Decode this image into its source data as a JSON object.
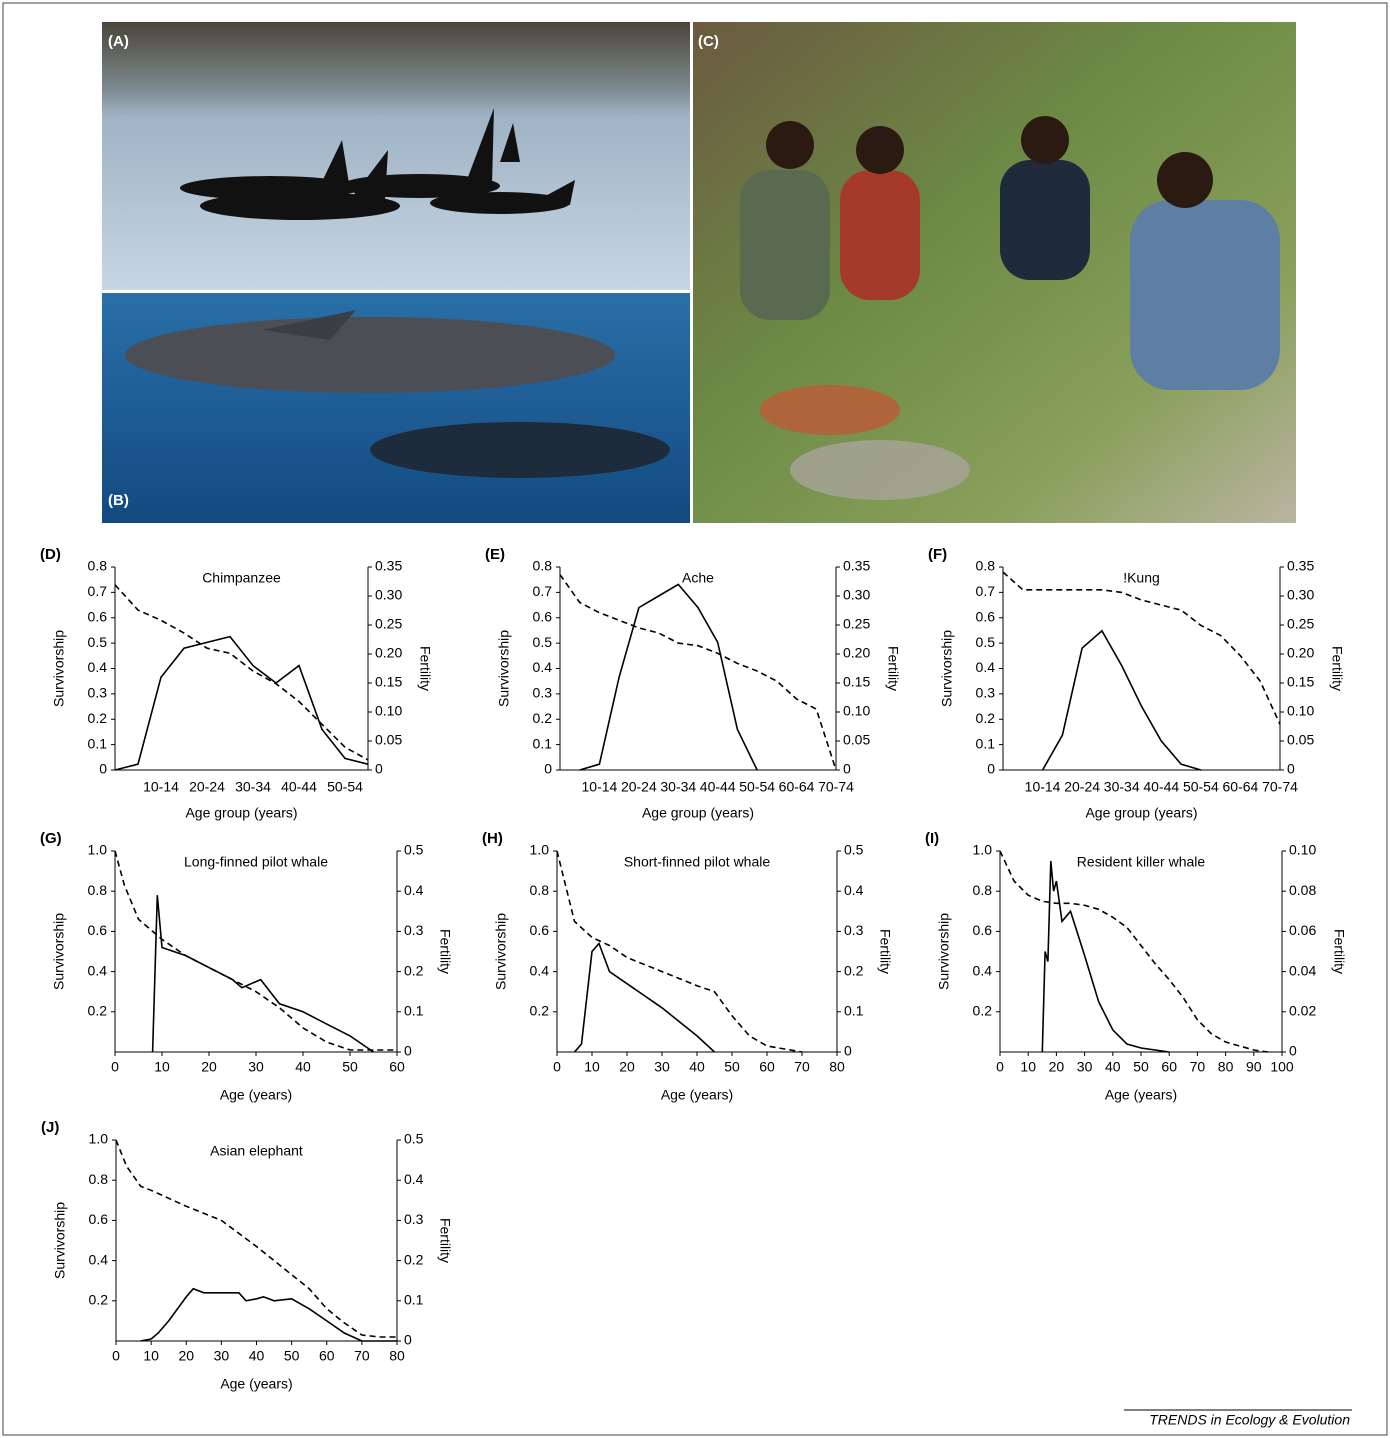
{
  "panels": [
    {
      "label": "(A)"
    },
    {
      "label": "(B)"
    },
    {
      "label": "(C)"
    }
  ],
  "footer": "TRENDS in Ecology & Evolution",
  "chart_data": [
    {
      "type": "line",
      "label": "(D)",
      "title": "Chimpanzee",
      "x_label": "Age group (years)",
      "y_label": "Survivorship",
      "y2_label": "Fertility",
      "categories": [
        null,
        null,
        "10-14",
        null,
        "20-24",
        null,
        "30-34",
        null,
        "40-44",
        null,
        "50-54",
        null
      ],
      "ylim": [
        0,
        0.8
      ],
      "yticks": [
        0,
        0.1,
        0.2,
        0.3,
        0.4,
        0.5,
        0.6,
        0.7,
        0.8
      ],
      "y2lim": [
        0,
        0.35
      ],
      "y2ticks": [
        0,
        0.05,
        {
          "value": 0.1,
          "label": "0.10"
        },
        0.15,
        {
          "value": 0.2,
          "label": "0.20"
        },
        0.25,
        {
          "value": 0.3,
          "label": "0.30"
        },
        0.35
      ],
      "series": [
        {
          "color": "#000000",
          "dashed": true,
          "values": [
            0.73,
            0.63,
            0.59,
            0.54,
            0.48,
            0.46,
            0.39,
            0.34,
            0.27,
            0.18,
            0.09,
            0.04
          ]
        },
        {
          "color": "#000000",
          "dashed": false,
          "axis": "y2",
          "values": [
            0,
            0.01,
            0.16,
            0.21,
            0.22,
            0.23,
            0.18,
            0.15,
            0.18,
            0.07,
            0.02,
            0.01
          ]
        }
      ]
    },
    {
      "type": "line",
      "label": "(E)",
      "title": "Ache",
      "x_label": "Age group (years)",
      "y_label": "Survivorship",
      "y2_label": "Fertility",
      "categories": [
        null,
        null,
        "10-14",
        null,
        "20-24",
        null,
        "30-34",
        null,
        "40-44",
        null,
        "50-54",
        null,
        "60-64",
        null,
        "70-74"
      ],
      "ylim": [
        0,
        0.8
      ],
      "yticks": [
        0,
        0.1,
        0.2,
        0.3,
        0.4,
        0.5,
        0.6,
        0.7,
        0.8
      ],
      "y2lim": [
        0,
        0.35
      ],
      "y2ticks": [
        0,
        0.05,
        {
          "value": 0.1,
          "label": "0.10"
        },
        0.15,
        {
          "value": 0.2,
          "label": "0.20"
        },
        0.25,
        {
          "value": 0.3,
          "label": "0.30"
        },
        0.35
      ],
      "series": [
        {
          "color": "#000000",
          "dashed": true,
          "values": [
            0.77,
            0.66,
            0.62,
            0.59,
            0.56,
            0.54,
            0.5,
            0.49,
            0.46,
            0.42,
            0.39,
            0.35,
            0.28,
            0.24,
            0
          ]
        },
        {
          "color": "#000000",
          "dashed": false,
          "axis": "y2",
          "values": [
            null,
            0,
            0.01,
            0.16,
            0.28,
            0.3,
            0.32,
            0.28,
            0.22,
            0.07,
            0,
            null,
            null,
            null,
            null
          ]
        }
      ]
    },
    {
      "type": "line",
      "label": "(F)",
      "title": "!Kung",
      "x_label": "Age group (years)",
      "y_label": "Survivorship",
      "y2_label": "Fertility",
      "categories": [
        null,
        null,
        "10-14",
        null,
        "20-24",
        null,
        "30-34",
        null,
        "40-44",
        null,
        "50-54",
        null,
        "60-64",
        null,
        "70-74"
      ],
      "ylim": [
        0,
        0.8
      ],
      "yticks": [
        0,
        0.1,
        0.2,
        0.3,
        0.4,
        0.5,
        0.6,
        0.7,
        0.8
      ],
      "y2lim": [
        0,
        0.35
      ],
      "y2ticks": [
        0,
        0.05,
        {
          "value": 0.1,
          "label": "0.10"
        },
        0.15,
        {
          "value": 0.2,
          "label": "0.20"
        },
        0.25,
        {
          "value": 0.3,
          "label": "0.30"
        },
        0.35
      ],
      "series": [
        {
          "color": "#000000",
          "dashed": true,
          "values": [
            0.78,
            0.71,
            0.71,
            0.71,
            0.71,
            0.71,
            0.7,
            0.67,
            0.65,
            0.63,
            0.57,
            0.53,
            0.45,
            0.35,
            0.18
          ]
        },
        {
          "color": "#000000",
          "dashed": false,
          "axis": "y2",
          "values": [
            null,
            null,
            0,
            0.06,
            0.21,
            0.24,
            0.18,
            0.11,
            0.05,
            0.01,
            0,
            null,
            null,
            null,
            null
          ]
        }
      ]
    },
    {
      "type": "line",
      "label": "(G)",
      "title": "Long-finned pilot whale",
      "x_label": "Age (years)",
      "y_label": "Survivorship",
      "y2_label": "Fertility",
      "xlim": [
        0,
        60
      ],
      "xticks": [
        0,
        10,
        20,
        30,
        40,
        50,
        60
      ],
      "ylim": [
        0,
        1
      ],
      "yticks": [
        0.2,
        0.4,
        0.6,
        0.8,
        {
          "value": 1,
          "label": "1.0"
        }
      ],
      "y2lim": [
        0,
        0.5
      ],
      "y2ticks": [
        0,
        0.1,
        0.2,
        0.3,
        0.4,
        0.5
      ],
      "series": [
        {
          "color": "#000000",
          "dashed": true,
          "x": [
            0,
            2,
            5,
            10,
            15,
            20,
            25,
            30,
            35,
            40,
            45,
            50,
            55,
            60
          ],
          "values": [
            1,
            0.83,
            0.66,
            0.56,
            0.48,
            0.42,
            0.36,
            0.3,
            0.22,
            0.12,
            0.05,
            0.01,
            0.01,
            0.01
          ]
        },
        {
          "color": "#000000",
          "dashed": false,
          "axis": "y2",
          "x": [
            8,
            9,
            10,
            15,
            20,
            25,
            27,
            31,
            35,
            40,
            45,
            50,
            55
          ],
          "values": [
            0,
            0.39,
            0.26,
            0.24,
            0.21,
            0.18,
            0.16,
            0.18,
            0.12,
            0.1,
            0.07,
            0.04,
            0
          ]
        }
      ]
    },
    {
      "type": "line",
      "label": "(H)",
      "title": "Short-finned pilot whale",
      "x_label": "Age (years)",
      "y_label": "Survivorship",
      "y2_label": "Fertility",
      "xlim": [
        0,
        80
      ],
      "xticks": [
        0,
        10,
        20,
        30,
        40,
        50,
        60,
        70,
        80
      ],
      "ylim": [
        0,
        1
      ],
      "yticks": [
        0.2,
        0.4,
        0.6,
        0.8,
        {
          "value": 1,
          "label": "1.0"
        }
      ],
      "y2lim": [
        0,
        0.5
      ],
      "y2ticks": [
        0,
        0.1,
        0.2,
        0.3,
        0.4,
        0.5
      ],
      "series": [
        {
          "color": "#000000",
          "dashed": true,
          "x": [
            0,
            5,
            10,
            15,
            20,
            30,
            40,
            45,
            50,
            55,
            60,
            70
          ],
          "values": [
            1,
            0.65,
            0.57,
            0.53,
            0.47,
            0.4,
            0.33,
            0.3,
            0.18,
            0.08,
            0.03,
            0
          ]
        },
        {
          "color": "#000000",
          "dashed": false,
          "axis": "y2",
          "x": [
            5,
            7,
            10,
            12,
            15,
            20,
            30,
            40,
            45
          ],
          "values": [
            0,
            0.02,
            0.25,
            0.27,
            0.2,
            0.17,
            0.11,
            0.04,
            0
          ]
        }
      ]
    },
    {
      "type": "line",
      "label": "(I)",
      "title": "Resident killer whale",
      "x_label": "Age (years)",
      "y_label": "Survivorship",
      "y2_label": "Fertility",
      "xlim": [
        0,
        100
      ],
      "xticks": [
        0,
        10,
        20,
        30,
        40,
        50,
        60,
        70,
        80,
        90,
        100
      ],
      "ylim": [
        0,
        1
      ],
      "yticks": [
        0.2,
        0.4,
        0.6,
        0.8,
        {
          "value": 1,
          "label": "1.0"
        }
      ],
      "y2lim": [
        0,
        0.1
      ],
      "y2ticks": [
        0,
        0.02,
        0.04,
        0.06,
        0.08,
        {
          "value": 0.1,
          "label": "0.10"
        }
      ],
      "series": [
        {
          "color": "#000000",
          "dashed": true,
          "x": [
            0,
            5,
            10,
            15,
            20,
            25,
            30,
            35,
            40,
            45,
            50,
            55,
            60,
            65,
            70,
            75,
            80,
            85,
            90,
            95
          ],
          "values": [
            1,
            0.85,
            0.78,
            0.75,
            0.74,
            0.74,
            0.73,
            0.71,
            0.67,
            0.62,
            0.53,
            0.44,
            0.36,
            0.27,
            0.16,
            0.09,
            0.05,
            0.03,
            0.01,
            0
          ]
        },
        {
          "color": "#000000",
          "dashed": false,
          "axis": "y2",
          "x": [
            15,
            16,
            17,
            18,
            19,
            20,
            22,
            25,
            30,
            35,
            40,
            45,
            50,
            55,
            60
          ],
          "values": [
            0,
            0.05,
            0.045,
            0.095,
            0.08,
            0.085,
            0.065,
            0.07,
            0.048,
            0.025,
            0.011,
            0.004,
            0.002,
            0.001,
            0
          ]
        }
      ]
    },
    {
      "type": "line",
      "label": "(J)",
      "title": "Asian elephant",
      "x_label": "Age (years)",
      "y_label": "Survivorship",
      "y2_label": "Fertility",
      "xlim": [
        0,
        80
      ],
      "xticks": [
        0,
        10,
        20,
        30,
        40,
        50,
        60,
        70,
        80
      ],
      "ylim": [
        0,
        1
      ],
      "yticks": [
        0.2,
        0.4,
        0.6,
        0.8,
        {
          "value": 1,
          "label": "1.0"
        }
      ],
      "y2lim": [
        0,
        0.5
      ],
      "y2ticks": [
        0,
        0.1,
        0.2,
        0.3,
        0.4,
        0.5
      ],
      "series": [
        {
          "color": "#000000",
          "dashed": true,
          "x": [
            0,
            3,
            7,
            10,
            20,
            30,
            40,
            50,
            55,
            60,
            65,
            70,
            75,
            80
          ],
          "values": [
            1,
            0.87,
            0.77,
            0.75,
            0.67,
            0.6,
            0.47,
            0.33,
            0.26,
            0.16,
            0.09,
            0.03,
            0.02,
            0.02
          ]
        },
        {
          "color": "#000000",
          "dashed": false,
          "axis": "y2",
          "x": [
            7,
            10,
            12,
            15,
            20,
            22,
            25,
            30,
            35,
            37,
            40,
            42,
            45,
            50,
            55,
            60,
            65,
            70,
            75,
            80
          ],
          "values": [
            0,
            0.005,
            0.02,
            0.05,
            0.11,
            0.13,
            0.12,
            0.12,
            0.12,
            0.1,
            0.105,
            0.11,
            0.1,
            0.105,
            0.08,
            0.05,
            0.02,
            0,
            0,
            0
          ]
        }
      ]
    }
  ]
}
